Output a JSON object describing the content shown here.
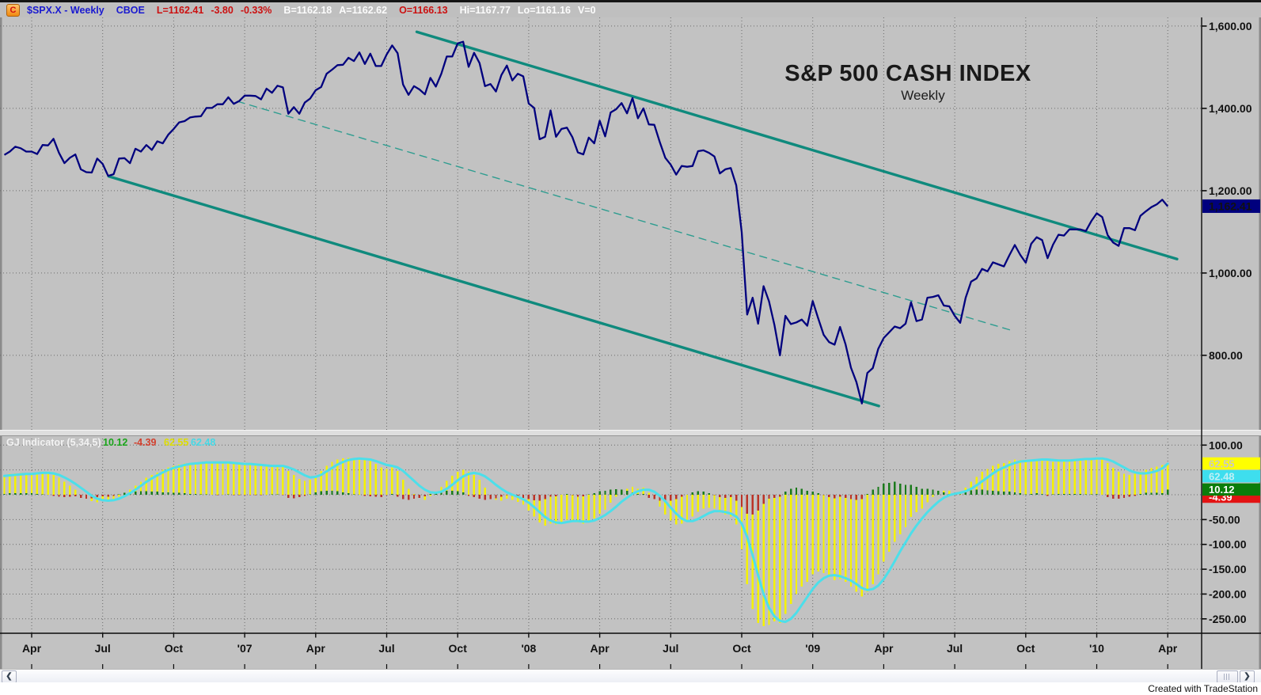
{
  "ticker_bar": {
    "badge": "C",
    "symbol": "$SPX.X - Weekly",
    "exchange": "CBOE",
    "last": "L=1162.41",
    "change": "-3.80",
    "change_pct": "-0.33%",
    "bid": "B=1162.18",
    "ask": "A=1162.62",
    "open": "O=1166.13",
    "high": "Hi=1167.77",
    "low": "Lo=1161.16",
    "volume": "V=0"
  },
  "chart_data": {
    "type": "line",
    "title": "S&P 500 CASH INDEX",
    "subtitle": "Weekly",
    "price_axis": {
      "ticks": [
        1600,
        1400,
        1200,
        1000,
        800
      ],
      "labels": [
        "1,600.00",
        "1,400.00",
        "1,200.00",
        "1,000.00",
        "800.00"
      ],
      "range": [
        619,
        1621
      ],
      "last_price": 1162.41,
      "last_price_label": "1,162.41"
    },
    "x_axis": {
      "labels": [
        "Apr",
        "Jul",
        "Oct",
        "'07",
        "Apr",
        "Jul",
        "Oct",
        "'08",
        "Apr",
        "Jul",
        "Oct",
        "'09",
        "Apr",
        "Jul",
        "Oct",
        "'10",
        "Apr"
      ],
      "grid_index": [
        5,
        18,
        31,
        44,
        57,
        70,
        83,
        96,
        109,
        122,
        135,
        148,
        161,
        174,
        187,
        200,
        213
      ]
    },
    "price_series": [
      1287,
      1295,
      1307,
      1303,
      1295,
      1295,
      1289,
      1311,
      1310,
      1326,
      1292,
      1267,
      1280,
      1288,
      1252,
      1245,
      1244,
      1278,
      1265,
      1236,
      1240,
      1278,
      1279,
      1267,
      1302,
      1295,
      1311,
      1299,
      1320,
      1315,
      1336,
      1350,
      1366,
      1369,
      1378,
      1380,
      1381,
      1401,
      1401,
      1410,
      1410,
      1427,
      1411,
      1418,
      1431,
      1431,
      1430,
      1422,
      1448,
      1438,
      1455,
      1451,
      1387,
      1403,
      1387,
      1414,
      1424,
      1444,
      1452,
      1484,
      1494,
      1505,
      1506,
      1523,
      1515,
      1536,
      1508,
      1533,
      1503,
      1503,
      1531,
      1553,
      1534,
      1458,
      1433,
      1454,
      1446,
      1434,
      1474,
      1453,
      1484,
      1526,
      1526,
      1558,
      1562,
      1501,
      1535,
      1510,
      1454,
      1459,
      1441,
      1481,
      1504,
      1468,
      1484,
      1478,
      1412,
      1401,
      1325,
      1331,
      1395,
      1331,
      1350,
      1353,
      1330,
      1293,
      1288,
      1329,
      1315,
      1370,
      1332,
      1390,
      1398,
      1413,
      1388,
      1425,
      1376,
      1400,
      1361,
      1360,
      1318,
      1280,
      1263,
      1239,
      1260,
      1258,
      1260,
      1296,
      1298,
      1292,
      1283,
      1242,
      1252,
      1255,
      1213,
      1099,
      899,
      940,
      877,
      968,
      931,
      873,
      800,
      896,
      876,
      880,
      887,
      872,
      932,
      890,
      850,
      832,
      826,
      869,
      827,
      770,
      735,
      683,
      757,
      769,
      816,
      842,
      856,
      870,
      866,
      877,
      929,
      883,
      887,
      940,
      942,
      946,
      921,
      919,
      896,
      879,
      940,
      979,
      987,
      1010,
      1004,
      1026,
      1021,
      1016,
      1043,
      1068,
      1044,
      1025,
      1071,
      1087,
      1080,
      1036,
      1069,
      1093,
      1091,
      1106,
      1106,
      1106,
      1102,
      1126,
      1145,
      1136,
      1092,
      1074,
      1066,
      1109,
      1109,
      1104,
      1139,
      1150,
      1160,
      1167,
      1178,
      1162
    ],
    "trendlines": [
      {
        "name": "upper-channel",
        "style": "solid",
        "i1": 75.5,
        "p1": 1586,
        "i2": 214.7,
        "p2": 1034
      },
      {
        "name": "lower-channel",
        "style": "solid",
        "i1": 19.1,
        "p1": 1235,
        "i2": 160.1,
        "p2": 677
      },
      {
        "name": "mid-channel",
        "style": "dashed",
        "i1": 42.7,
        "p1": 1417,
        "i2": 184.3,
        "p2": 861
      }
    ],
    "indicator": {
      "label": "GJ Indicator (5,34,5)",
      "display_values": {
        "delta": "10.12",
        "delta2": "-4.39",
        "hist": "62.55",
        "signal": "62.48"
      },
      "hist": [
        40,
        42,
        43,
        44,
        44,
        44,
        45,
        46,
        44,
        40,
        34,
        26,
        18,
        10,
        0,
        -8,
        -13,
        -15,
        -12,
        -14,
        -10,
        -4,
        4,
        10,
        18,
        26,
        34,
        40,
        45,
        50,
        55,
        58,
        61,
        63,
        64,
        65,
        65,
        66,
        66,
        65,
        64,
        65,
        63,
        62,
        62,
        61,
        60,
        58,
        57,
        57,
        58,
        57,
        48,
        40,
        32,
        28,
        30,
        38,
        48,
        58,
        66,
        71,
        73,
        74,
        73,
        72,
        70,
        68,
        62,
        55,
        52,
        55,
        48,
        30,
        12,
        2,
        -6,
        -10,
        -2,
        6,
        16,
        28,
        38,
        46,
        50,
        46,
        40,
        30,
        14,
        0,
        -10,
        -12,
        -8,
        -10,
        -14,
        -20,
        -32,
        -44,
        -56,
        -62,
        -58,
        -60,
        -55,
        -50,
        -52,
        -56,
        -58,
        -52,
        -48,
        -38,
        -30,
        -16,
        -4,
        6,
        12,
        16,
        12,
        14,
        4,
        -8,
        -24,
        -40,
        -52,
        -60,
        -58,
        -52,
        -44,
        -34,
        -28,
        -26,
        -28,
        -36,
        -40,
        -44,
        -60,
        -110,
        -180,
        -230,
        -258,
        -265,
        -262,
        -255,
        -258,
        -240,
        -220,
        -200,
        -185,
        -175,
        -160,
        -155,
        -158,
        -165,
        -172,
        -170,
        -175,
        -185,
        -195,
        -205,
        -195,
        -180,
        -160,
        -135,
        -115,
        -95,
        -80,
        -65,
        -45,
        -35,
        -28,
        -15,
        -5,
        4,
        8,
        8,
        4,
        6,
        14,
        26,
        36,
        46,
        52,
        58,
        62,
        64,
        68,
        71,
        70,
        67,
        69,
        72,
        73,
        68,
        66,
        68,
        70,
        71,
        72,
        73,
        72,
        73,
        74,
        72,
        64,
        54,
        46,
        42,
        40,
        42,
        46,
        50,
        54,
        57,
        60,
        62.55
      ],
      "delta": [
        2,
        3,
        3,
        3,
        3,
        3,
        2,
        1,
        0,
        -2,
        -4,
        -5,
        -4,
        -3,
        -6,
        -8,
        -7,
        -5,
        -3,
        -4,
        -2,
        1,
        4,
        5,
        6,
        7,
        7,
        6,
        6,
        5,
        5,
        4,
        4,
        3,
        2,
        2,
        1,
        1,
        0,
        -1,
        0,
        1,
        -1,
        -1,
        -1,
        -1,
        -1,
        -1,
        0,
        1,
        1,
        -1,
        -6,
        -7,
        -5,
        -2,
        1,
        5,
        7,
        8,
        8,
        7,
        5,
        3,
        1,
        0,
        -2,
        -3,
        -4,
        -5,
        -1,
        2,
        -4,
        -9,
        -10,
        -8,
        -6,
        -3,
        2,
        5,
        7,
        8,
        8,
        7,
        5,
        -2,
        -5,
        -8,
        -10,
        -9,
        -7,
        -4,
        -1,
        -2,
        -4,
        -6,
        -9,
        -11,
        -12,
        -9,
        -4,
        -3,
        0,
        2,
        -1,
        -4,
        -3,
        1,
        3,
        7,
        8,
        10,
        11,
        10,
        8,
        5,
        2,
        2,
        -6,
        -9,
        -12,
        -13,
        -12,
        -9,
        -4,
        0,
        5,
        7,
        6,
        3,
        -1,
        -5,
        -6,
        -5,
        -12,
        -25,
        -38,
        -40,
        -32,
        -18,
        -8,
        -6,
        -4,
        6,
        12,
        14,
        12,
        8,
        6,
        3,
        -1,
        -5,
        -7,
        -4,
        -6,
        -9,
        -10,
        -9,
        2,
        10,
        16,
        22,
        24,
        26,
        22,
        20,
        20,
        16,
        12,
        12,
        10,
        8,
        5,
        2,
        -1,
        1,
        5,
        9,
        10,
        10,
        9,
        8,
        7,
        6,
        6,
        5,
        3,
        1,
        2,
        3,
        2,
        -2,
        1,
        2,
        2,
        2,
        2,
        2,
        1,
        1,
        2,
        0,
        -5,
        -8,
        -8,
        -6,
        -4,
        -2,
        2,
        4,
        4,
        4,
        3,
        10.12
      ],
      "signal": [
        38,
        39,
        40,
        41,
        42,
        42,
        43,
        44,
        44,
        43,
        40,
        35,
        29,
        22,
        14,
        6,
        -2,
        -8,
        -11,
        -12,
        -11,
        -8,
        -3,
        3,
        10,
        18,
        26,
        33,
        39,
        45,
        50,
        54,
        57,
        60,
        62,
        63,
        64,
        65,
        65,
        65,
        65,
        65,
        64,
        63,
        62,
        62,
        61,
        60,
        59,
        58,
        58,
        58,
        55,
        51,
        45,
        39,
        35,
        36,
        40,
        47,
        54,
        61,
        66,
        70,
        72,
        73,
        72,
        71,
        68,
        64,
        60,
        58,
        55,
        48,
        38,
        28,
        18,
        10,
        5,
        4,
        6,
        12,
        20,
        29,
        37,
        42,
        44,
        42,
        37,
        29,
        20,
        12,
        5,
        0,
        -4,
        -9,
        -16,
        -25,
        -35,
        -45,
        -52,
        -56,
        -57,
        -55,
        -53,
        -53,
        -54,
        -54,
        -52,
        -47,
        -41,
        -33,
        -24,
        -14,
        -6,
        2,
        7,
        10,
        10,
        6,
        -2,
        -13,
        -26,
        -38,
        -48,
        -53,
        -53,
        -49,
        -43,
        -37,
        -33,
        -33,
        -35,
        -38,
        -44,
        -58,
        -85,
        -122,
        -162,
        -200,
        -228,
        -245,
        -254,
        -256,
        -250,
        -238,
        -222,
        -206,
        -190,
        -177,
        -168,
        -163,
        -162,
        -164,
        -168,
        -173,
        -180,
        -188,
        -192,
        -190,
        -183,
        -170,
        -153,
        -134,
        -114,
        -96,
        -78,
        -62,
        -48,
        -35,
        -24,
        -14,
        -6,
        -1,
        2,
        4,
        7,
        12,
        19,
        27,
        35,
        43,
        50,
        55,
        60,
        64,
        67,
        68,
        69,
        70,
        71,
        71,
        70,
        69,
        69,
        69,
        70,
        71,
        72,
        72,
        73,
        73,
        71,
        67,
        61,
        55,
        49,
        45,
        43,
        43,
        45,
        48,
        53,
        62.48
      ],
      "axis": {
        "grid_ticks": [
          100,
          50,
          0,
          -50,
          -100,
          -150,
          -200,
          -250
        ],
        "label_ticks": [
          100,
          -50,
          -100,
          -150,
          -200,
          -250
        ],
        "labels": [
          "100.00",
          "-50.00",
          "-100.00",
          "-150.00",
          "-200.00",
          "-250.00"
        ],
        "range": [
          -279,
          118
        ],
        "boxes": [
          {
            "text": "62.48",
            "value": 62.48,
            "bg": "#3edeee",
            "fg": "#bff0f5"
          },
          {
            "text": "62.55",
            "value": 62.55,
            "bg": "#ffff00",
            "fg": "#c9c9c9"
          },
          {
            "text": "-4.39",
            "value": -4.39,
            "bg": "#e31313",
            "fg": "#ffffff"
          },
          {
            "text": "10.12",
            "value": 10.12,
            "bg": "#0b7d0b",
            "fg": "#ffffff"
          }
        ]
      }
    },
    "colors": {
      "price": "#00007e",
      "trend": "#0f8a7d",
      "trend_dashed": "#2f9d90",
      "hist": "#f5f200",
      "delta_pos": "#1b7a1b",
      "delta_neg": "#bb3326",
      "signal": "#4cdfea",
      "last_price_bg": "#00007e",
      "grid": "#6b6b6b",
      "background": "#c2c2c2"
    }
  },
  "status_bar": {
    "created_with": "Created with TradeStation"
  }
}
